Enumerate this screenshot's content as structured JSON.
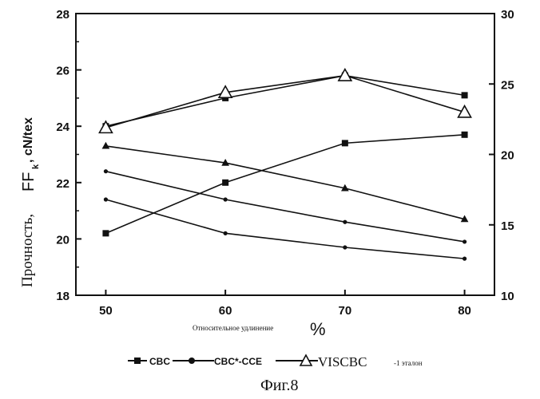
{
  "chart_data": {
    "type": "line",
    "x": [
      50,
      60,
      70,
      80
    ],
    "ylabel": "Прочность,",
    "ylabel_ff": "FF",
    "ylabel_ff_sub": "k",
    "ylabel_unit": ", cN/tex",
    "xlabel": "Относительное удлинение",
    "xlabel_unit": "%",
    "ylim_left": [
      18,
      28
    ],
    "ylim_right": [
      10,
      30
    ],
    "xlim": [
      47.5,
      82.5
    ],
    "x_ticks": [
      "50",
      "60",
      "70",
      "80"
    ],
    "y_ticks_left": [
      "18",
      "20",
      "22",
      "24",
      "26",
      "28"
    ],
    "y_ticks_right": [
      "10",
      "15",
      "20",
      "25",
      "30"
    ],
    "series": [
      {
        "name": "CBC-1",
        "legend": "CBC",
        "marker": "square",
        "axis": "left",
        "values": [
          20.2,
          22.0,
          23.4,
          23.7
        ]
      },
      {
        "name": "CBC-2",
        "marker": "square",
        "axis": "left",
        "values": [
          24.0,
          25.0,
          25.8,
          25.1
        ]
      },
      {
        "name": "CBC*-CCE-1",
        "legend": "CBC*-CCE",
        "marker": "dot",
        "axis": "left",
        "values": [
          22.4,
          21.4,
          20.6,
          19.9
        ]
      },
      {
        "name": "CBC*-CCE-2",
        "marker": "dot",
        "axis": "left",
        "values": [
          21.4,
          20.2,
          19.7,
          19.3
        ]
      },
      {
        "name": "VISCBC-1 эталон (a)",
        "legend": "VISCBC",
        "legend_suffix": "-1 эталон",
        "marker": "triangle",
        "axis": "left",
        "values": [
          23.3,
          22.7,
          21.8,
          20.7
        ]
      },
      {
        "name": "VISCBC-1 эталон (b)",
        "marker": "triangle",
        "axis": "right",
        "values": [
          21.9,
          24.4,
          25.6,
          23.0
        ]
      }
    ],
    "caption": "Фиг.8"
  }
}
